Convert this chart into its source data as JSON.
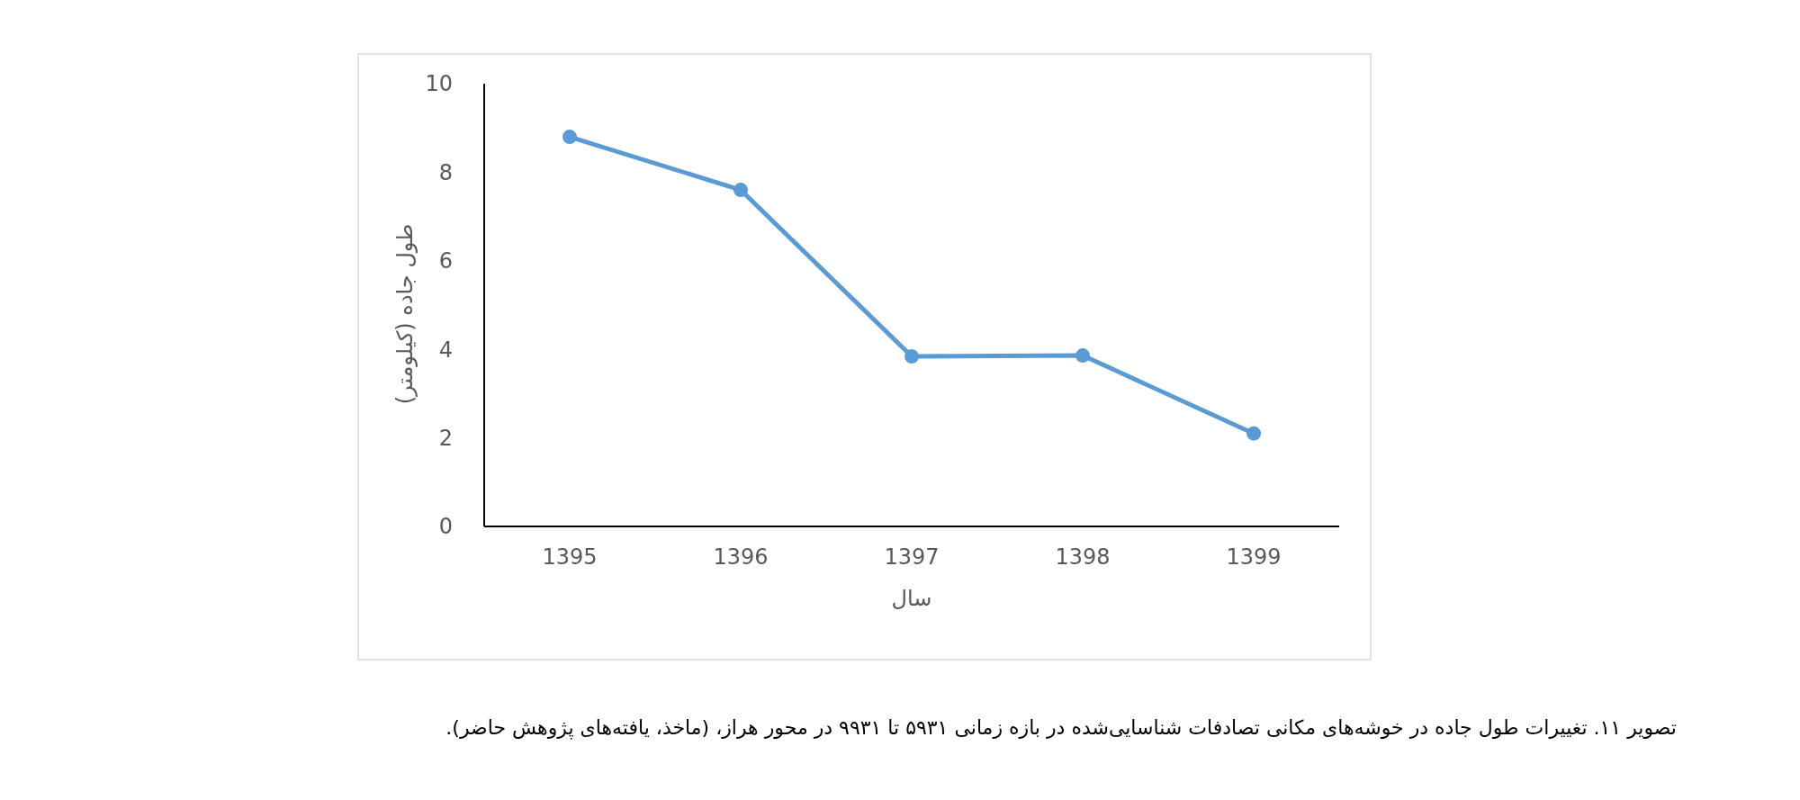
{
  "chart_data": {
    "type": "line",
    "xlabel": "سال",
    "ylabel": "طول جاده (کیلومتر)",
    "annotations": [
      "تصویر ۱۱. تغییرات طول جاده در خوشه‌های مکانی تصادفات شناسایی‌شده در بازه زمانی ۵۹۳۱ تا ۹۹۳۱ در محور هراز، (ماخذ، یافته‌های پژوهش حاضر)."
    ],
    "categories": [
      "1395",
      "1396",
      "1397",
      "1398",
      "1399"
    ],
    "series": [
      {
        "color": "#5b9bd5",
        "values": [
          8.8,
          7.6,
          3.84,
          3.86,
          2.1
        ]
      }
    ],
    "ylim": [
      0,
      10
    ],
    "yticks": [
      0,
      2,
      4,
      6,
      8,
      10
    ],
    "grid": false,
    "marker": "circle",
    "line_style": "solid"
  }
}
